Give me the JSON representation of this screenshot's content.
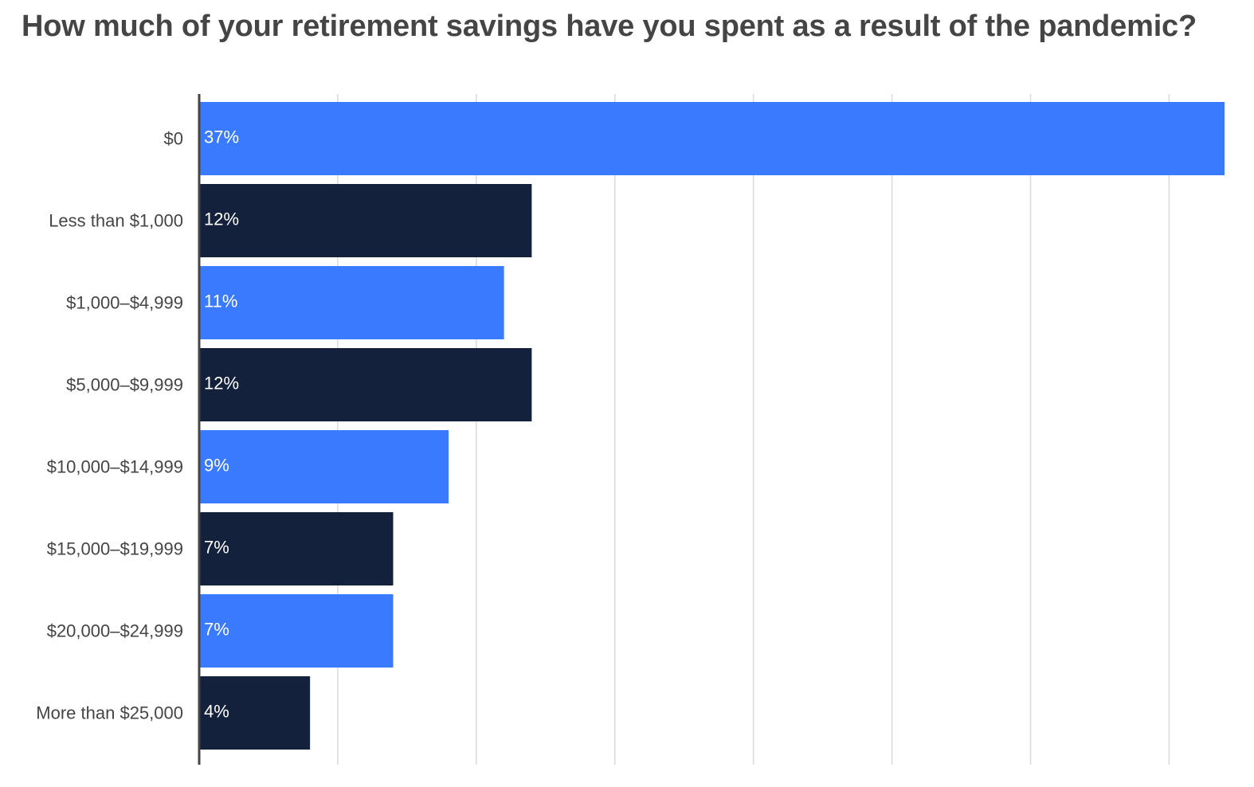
{
  "chart_data": {
    "type": "bar",
    "orientation": "horizontal",
    "title": "How much of your retirement savings have you spent as a result of the pandemic?",
    "categories": [
      "$0",
      "Less than $1,000",
      "$1,000–$4,999",
      "$5,000–$9,999",
      "$10,000–$14,999",
      "$15,000–$19,999",
      "$20,000–$24,999",
      "More than $25,000"
    ],
    "values": [
      37,
      12,
      11,
      12,
      9,
      7,
      7,
      4
    ],
    "value_labels": [
      "37%",
      "12%",
      "11%",
      "12%",
      "9%",
      "7%",
      "7%",
      "4%"
    ],
    "unit": "%",
    "xlim": [
      0,
      37
    ],
    "grid": true,
    "bar_colors": [
      "#3a7afe",
      "#14213d"
    ]
  }
}
